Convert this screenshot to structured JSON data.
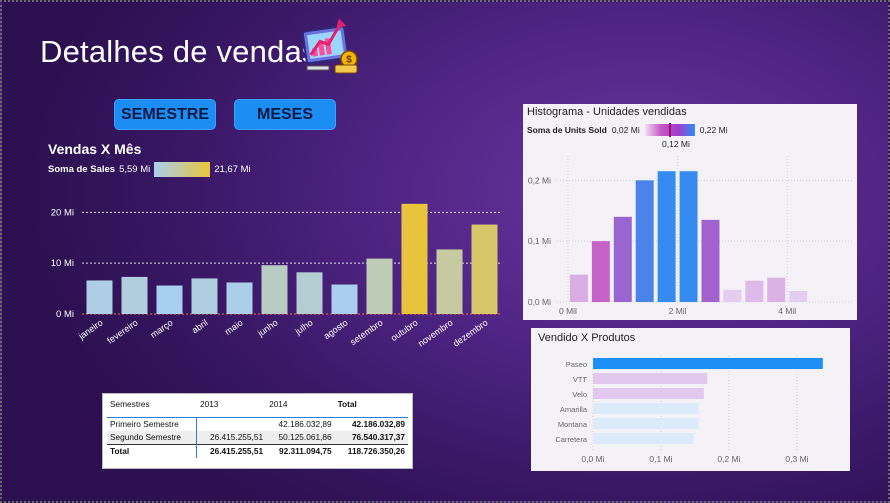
{
  "page": {
    "title": "Detalhes de vendas",
    "icon": "analytics-chart-icon"
  },
  "buttons": {
    "semester": "SEMESTRE",
    "months": "MESES"
  },
  "colors": {
    "background": "#4d2381",
    "button": "#1c8df3",
    "sales_low": "#a9cff0",
    "sales_high": "#e8c43c",
    "hist_blue": "#2f8ef2",
    "hist_magenta": "#c455c4",
    "bar_blue": "#1e8ff5"
  },
  "sales": {
    "title": "Vendas X Mês",
    "legend_label": "Soma de Sales",
    "legend_min": "5,59 Mi",
    "legend_max": "21,67 Mi"
  },
  "hist": {
    "title": "Histograma - Unidades vendidas",
    "legend_label": "Soma de Units Sold",
    "legend_min": "0,02 Mi",
    "legend_max": "0,22 Mi",
    "legend_mid": "0,12 Mi"
  },
  "products": {
    "title": "Vendido X Produtos"
  },
  "table": {
    "headers": [
      "Semestres",
      "2013",
      "2014",
      "Total"
    ],
    "rows": [
      {
        "label": "Primeiro Semestre",
        "y2013": "",
        "y2014": "42.186.032,89",
        "total": "42.186.032,89"
      },
      {
        "label": "Segundo Semestre",
        "y2013": "26.415.255,51",
        "y2014": "50.125.061,86",
        "total": "76.540.317,37"
      }
    ],
    "footer": {
      "label": "Total",
      "y2013": "26.415.255,51",
      "y2014": "92.311.094,75",
      "total": "118.726.350,26"
    }
  },
  "chart_data": [
    {
      "type": "bar",
      "title": "Vendas X Mês",
      "categories": [
        "janeiro",
        "fevereiro",
        "março",
        "abril",
        "maio",
        "junho",
        "julho",
        "agosto",
        "setembro",
        "outubro",
        "novembro",
        "dezembro"
      ],
      "values": [
        6.6,
        7.3,
        5.6,
        7.0,
        6.2,
        9.6,
        8.2,
        5.8,
        10.9,
        21.67,
        12.7,
        17.6
      ],
      "ylim": [
        0,
        24
      ],
      "yticks": [
        0,
        10,
        20
      ],
      "ytick_labels": [
        "0 Mi",
        "10 Mi",
        "20 Mi"
      ],
      "grid": true
    },
    {
      "type": "bar",
      "title": "Histograma - Unidades vendidas",
      "x": [
        0.2,
        0.6,
        1.0,
        1.4,
        1.8,
        2.2,
        2.6,
        3.0,
        3.4,
        3.8,
        4.2
      ],
      "values": [
        0.045,
        0.1,
        0.14,
        0.2,
        0.215,
        0.215,
        0.135,
        0.02,
        0.035,
        0.04,
        0.018
      ],
      "xlim": [
        -0.2,
        5.2
      ],
      "ylim": [
        0,
        0.24
      ],
      "xticks": [
        0,
        2,
        4
      ],
      "xtick_labels": [
        "0 Mil",
        "2 Mil",
        "4 Mil"
      ],
      "yticks": [
        0,
        0.1,
        0.2
      ],
      "ytick_labels": [
        "0,0 Mi",
        "0,1 Mi",
        "0,2 Mi"
      ],
      "grid": true
    },
    {
      "type": "bar",
      "title": "Vendido X Produtos",
      "categories": [
        "Paseo",
        "VTT",
        "Velo",
        "Amarilla",
        "Montana",
        "Carretera"
      ],
      "values": [
        0.338,
        0.168,
        0.163,
        0.155,
        0.155,
        0.148
      ],
      "xlim": [
        0,
        0.35
      ],
      "xticks": [
        0,
        0.1,
        0.2,
        0.3
      ],
      "xtick_labels": [
        "0,0 Mi",
        "0,1 Mi",
        "0,2 Mi",
        "0,3 Mi"
      ],
      "grid": true
    }
  ]
}
